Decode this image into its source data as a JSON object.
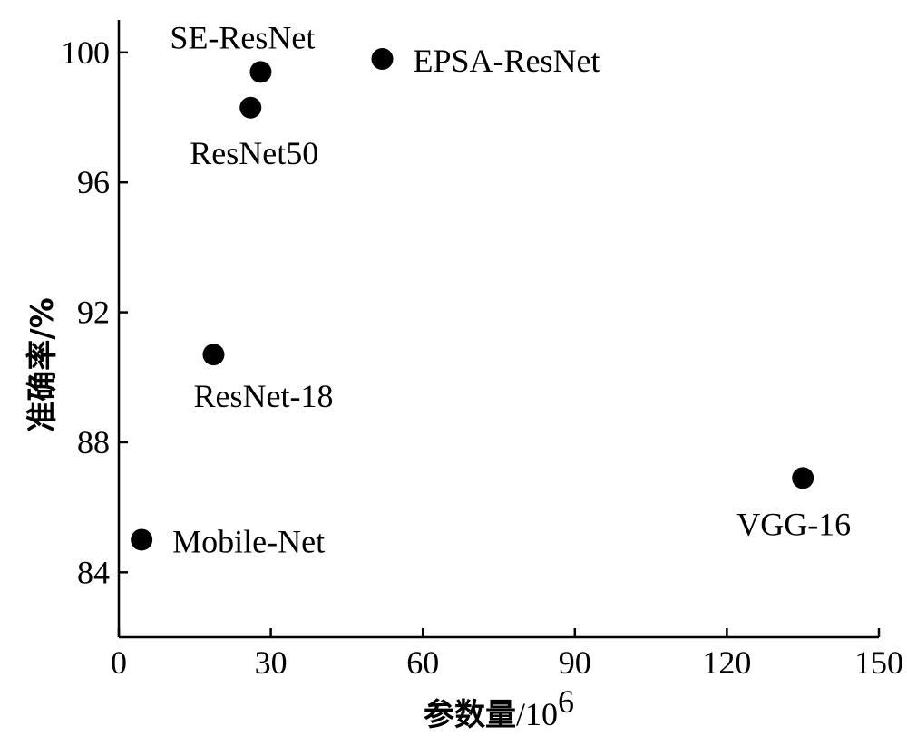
{
  "chart_data": {
    "type": "scatter",
    "title": "",
    "xlabel": {
      "prefix": "参数量",
      "unit": "/10",
      "sup": "6"
    },
    "ylabel": "准确率/%",
    "xlim": [
      0,
      150
    ],
    "ylim": [
      82,
      101
    ],
    "xticks": [
      0,
      30,
      60,
      90,
      120,
      150
    ],
    "yticks": [
      84,
      88,
      92,
      96,
      100
    ],
    "grid": false,
    "legend": "none",
    "point_color": "#000000",
    "points": [
      {
        "label": "SE-ResNet",
        "x": 28,
        "y": 99.4,
        "label_pos": "above"
      },
      {
        "label": "EPSA-ResNet",
        "x": 52,
        "y": 99.8,
        "label_pos": "right"
      },
      {
        "label": "ResNet50",
        "x": 26,
        "y": 98.3,
        "label_pos": "below"
      },
      {
        "label": "ResNet-18",
        "x": 18.7,
        "y": 90.7,
        "label_pos": "below"
      },
      {
        "label": "VGG-16",
        "x": 135,
        "y": 86.9,
        "label_pos": "below"
      },
      {
        "label": "Mobile-Net",
        "x": 4.5,
        "y": 85.0,
        "label_pos": "right"
      }
    ]
  }
}
